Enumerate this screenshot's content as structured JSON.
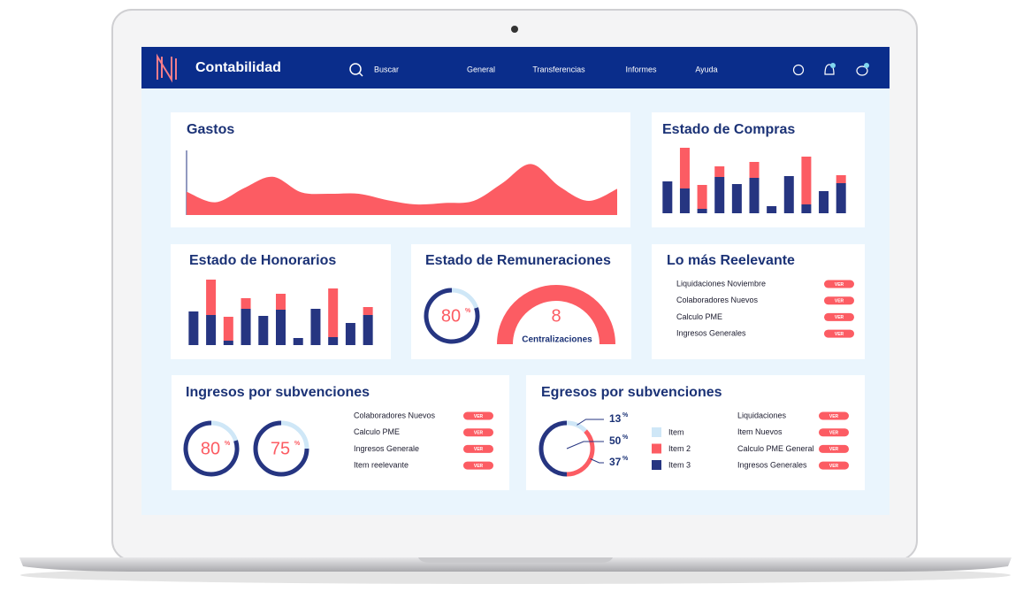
{
  "nav": {
    "brand": "Contabilidad",
    "search": "Buscar",
    "links": [
      "General",
      "Transferencias",
      "Informes",
      "Ayuda"
    ]
  },
  "chart_data": [
    {
      "type": "area",
      "title": "Gastos",
      "values": [
        33,
        18,
        38,
        54,
        32,
        30,
        30,
        21,
        15,
        17,
        20,
        45,
        72,
        40,
        20,
        37
      ],
      "ylim": [
        0,
        100
      ],
      "color": "#fc5c63"
    },
    {
      "type": "bar",
      "title": "Estado de Compras",
      "stacked": true,
      "ylim": [
        0,
        80
      ],
      "series": [
        {
          "color": "#263581",
          "values": [
            36,
            28,
            5,
            41,
            33,
            40,
            8,
            42,
            10,
            25,
            34
          ]
        },
        {
          "color": "#fc5c63",
          "values": [
            0,
            46,
            27,
            12,
            0,
            18,
            0,
            0,
            54,
            0,
            9
          ]
        }
      ]
    },
    {
      "type": "bar",
      "title": "Estado de Honorarios",
      "stacked": true,
      "ylim": [
        0,
        80
      ],
      "series": [
        {
          "color": "#263581",
          "values": [
            38,
            34,
            5,
            41,
            33,
            40,
            8,
            41,
            9,
            25,
            34
          ]
        },
        {
          "color": "#fc5c63",
          "values": [
            0,
            40,
            27,
            12,
            0,
            18,
            0,
            0,
            55,
            0,
            9
          ]
        }
      ]
    }
  ],
  "remuneraciones": {
    "title": "Estado de Remuneraciones",
    "percent": {
      "value": 80,
      "unit": "%"
    },
    "gauge": {
      "value": 8,
      "label": "Centralizaciones"
    }
  },
  "relevante": {
    "title": "Lo más Reelevante",
    "items": [
      {
        "label": "Liquidaciones Noviembre",
        "button": "VER"
      },
      {
        "label": "Colaboradores Nuevos",
        "button": "VER"
      },
      {
        "label": "Calculo PME",
        "button": "VER"
      },
      {
        "label": "Ingresos Generales",
        "button": "VER"
      }
    ]
  },
  "ingresos": {
    "title": "Ingresos por subvenciones",
    "donuts": [
      {
        "value": 80,
        "unit": "%"
      },
      {
        "value": 75,
        "unit": "%"
      }
    ],
    "items": [
      {
        "label": "Colaboradores Nuevos",
        "button": "VER"
      },
      {
        "label": "Calculo PME",
        "button": "VER"
      },
      {
        "label": "Ingresos Generale",
        "button": "VER"
      },
      {
        "label": "Item reelevante",
        "button": "VER"
      }
    ]
  },
  "egresos": {
    "title": "Egresos por subvenciones",
    "donut": {
      "type": "pie",
      "unit": "%",
      "series": [
        {
          "name": "Item",
          "value": 13,
          "color": "#cfe7f7"
        },
        {
          "name": "Item 2",
          "value": 37,
          "color": "#fc5c63"
        },
        {
          "name": "Item 3",
          "value": 50,
          "color": "#263581"
        }
      ]
    },
    "items": [
      {
        "label": "Liquidaciones",
        "button": "VER"
      },
      {
        "label": "Item Nuevos",
        "button": "VER"
      },
      {
        "label": "Calculo PME General",
        "button": "VER"
      },
      {
        "label": "Ingresos Generales",
        "button": "VER"
      }
    ]
  }
}
